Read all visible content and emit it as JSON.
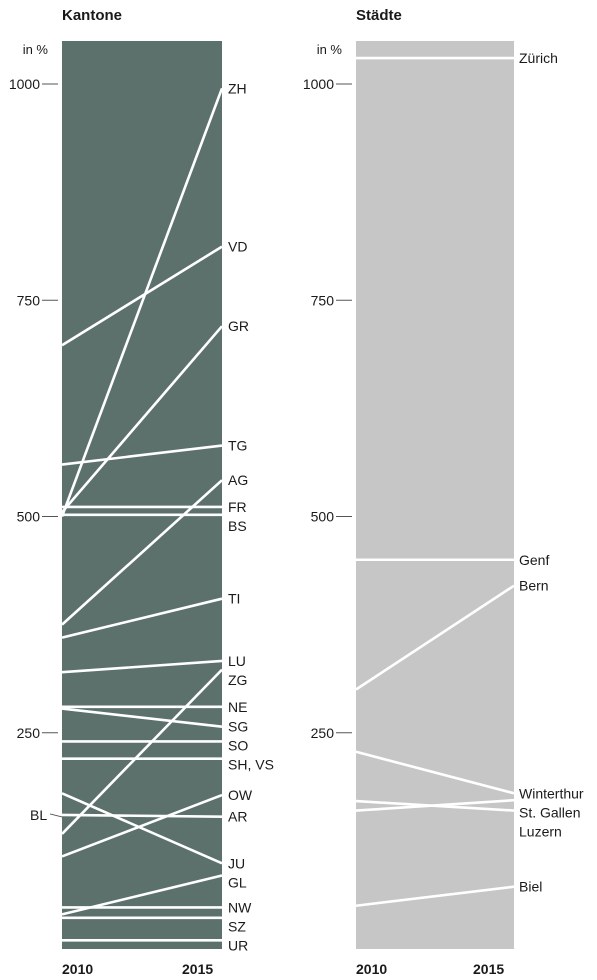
{
  "chart_data": [
    {
      "type": "line",
      "title": "Kantone",
      "unit_label": "in %",
      "x": [
        "2010",
        "2015"
      ],
      "ylim": [
        0,
        1050
      ],
      "yticks": [
        250,
        500,
        750,
        1000
      ],
      "grid": false,
      "bg_color": "#5c716c",
      "series": [
        {
          "name": "ZH",
          "values": [
            500,
            995
          ]
        },
        {
          "name": "VD",
          "values": [
            698,
            812
          ]
        },
        {
          "name": "GR",
          "values": [
            505,
            720
          ]
        },
        {
          "name": "TG",
          "values": [
            560,
            582
          ]
        },
        {
          "name": "AG",
          "values": [
            375,
            542
          ]
        },
        {
          "name": "FR",
          "values": [
            511,
            511
          ]
        },
        {
          "name": "BS",
          "values": [
            502,
            502
          ]
        },
        {
          "name": "TI",
          "values": [
            360,
            405
          ]
        },
        {
          "name": "LU",
          "values": [
            320,
            333
          ]
        },
        {
          "name": "ZG",
          "values": [
            133,
            323
          ]
        },
        {
          "name": "NE",
          "values": [
            280,
            280
          ]
        },
        {
          "name": "SG",
          "values": [
            278,
            257
          ]
        },
        {
          "name": "SO",
          "values": [
            240,
            240
          ]
        },
        {
          "name": "SH, VS",
          "values": [
            220,
            220
          ]
        },
        {
          "name": "AR",
          "values": [
            155,
            153
          ]
        },
        {
          "name": "OW",
          "values": [
            107,
            178
          ]
        },
        {
          "name": "JU",
          "values": [
            180,
            99
          ]
        },
        {
          "name": "GL",
          "values": [
            40,
            85
          ]
        },
        {
          "name": "NW",
          "values": [
            48,
            48
          ]
        },
        {
          "name": "SZ",
          "values": [
            36,
            36
          ]
        },
        {
          "name": "UR",
          "values": [
            10,
            10
          ]
        }
      ],
      "annotations": [
        {
          "text": "BL",
          "value": 155
        }
      ]
    },
    {
      "type": "line",
      "title": "Städte",
      "unit_label": "in %",
      "x": [
        "2010",
        "2015"
      ],
      "ylim": [
        0,
        1050
      ],
      "yticks": [
        250,
        500,
        750,
        1000
      ],
      "grid": false,
      "bg_color": "#c6c6c6",
      "series": [
        {
          "name": "Zürich",
          "values": [
            1030,
            1030
          ]
        },
        {
          "name": "Genf",
          "values": [
            450,
            450
          ]
        },
        {
          "name": "Bern",
          "values": [
            300,
            420
          ]
        },
        {
          "name": "Winterthur",
          "values": [
            228,
            180
          ]
        },
        {
          "name": "St. Gallen",
          "values": [
            160,
            172
          ]
        },
        {
          "name": "Luzern",
          "values": [
            171,
            160
          ]
        },
        {
          "name": "Biel",
          "values": [
            50,
            72
          ]
        }
      ]
    }
  ]
}
